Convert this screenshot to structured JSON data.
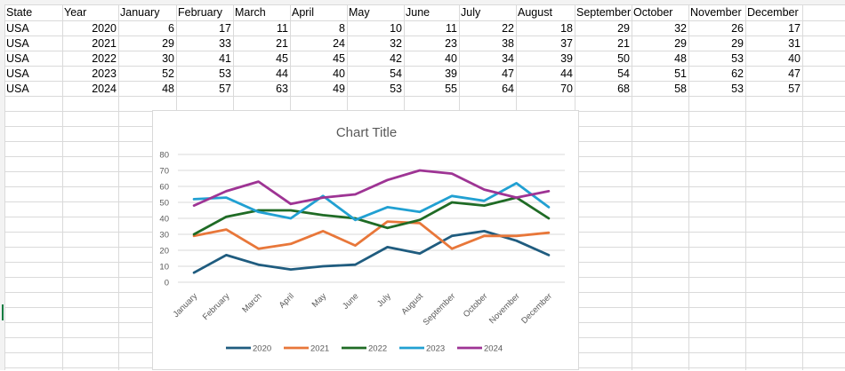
{
  "sheet": {
    "headers": [
      "State",
      "Year",
      "January",
      "February",
      "March",
      "April",
      "May",
      "June",
      "July",
      "August",
      "September",
      "October",
      "November",
      "December"
    ],
    "rows": [
      [
        "USA",
        "2020",
        "6",
        "17",
        "11",
        "8",
        "10",
        "11",
        "22",
        "18",
        "29",
        "32",
        "26",
        "17"
      ],
      [
        "USA",
        "2021",
        "29",
        "33",
        "21",
        "24",
        "32",
        "23",
        "38",
        "37",
        "21",
        "29",
        "29",
        "31"
      ],
      [
        "USA",
        "2022",
        "30",
        "41",
        "45",
        "45",
        "42",
        "40",
        "34",
        "39",
        "50",
        "48",
        "53",
        "40"
      ],
      [
        "USA",
        "2023",
        "52",
        "53",
        "44",
        "40",
        "54",
        "39",
        "47",
        "44",
        "54",
        "51",
        "62",
        "47"
      ],
      [
        "USA",
        "2024",
        "48",
        "57",
        "63",
        "49",
        "53",
        "55",
        "64",
        "70",
        "68",
        "58",
        "53",
        "57"
      ]
    ]
  },
  "chart_data": {
    "type": "line",
    "title": "Chart Title",
    "categories": [
      "January",
      "February",
      "March",
      "April",
      "May",
      "June",
      "July",
      "August",
      "September",
      "October",
      "November",
      "December"
    ],
    "series": [
      {
        "name": "2020",
        "color": "#1f5c7f",
        "values": [
          6,
          17,
          11,
          8,
          10,
          11,
          22,
          18,
          29,
          32,
          26,
          17
        ]
      },
      {
        "name": "2021",
        "color": "#e8773a",
        "values": [
          29,
          33,
          21,
          24,
          32,
          23,
          38,
          37,
          21,
          29,
          29,
          31
        ]
      },
      {
        "name": "2022",
        "color": "#1f6b25",
        "values": [
          30,
          41,
          45,
          45,
          42,
          40,
          34,
          39,
          50,
          48,
          53,
          40
        ]
      },
      {
        "name": "2023",
        "color": "#21a0d2",
        "values": [
          52,
          53,
          44,
          40,
          54,
          39,
          47,
          44,
          54,
          51,
          62,
          47
        ]
      },
      {
        "name": "2024",
        "color": "#9e3494",
        "values": [
          48,
          57,
          63,
          49,
          53,
          55,
          64,
          70,
          68,
          58,
          53,
          57
        ]
      }
    ],
    "yticks": [
      "0",
      "10",
      "20",
      "30",
      "40",
      "50",
      "60",
      "70",
      "80"
    ],
    "ylim": [
      0,
      80
    ],
    "grid": true,
    "legend_position": "bottom"
  }
}
